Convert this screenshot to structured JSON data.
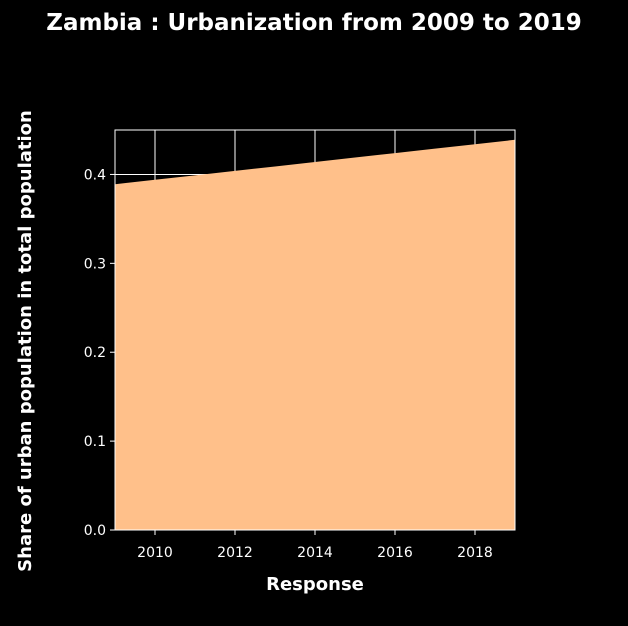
{
  "chart_data": {
    "type": "area",
    "title": "Zambia : Urbanization from 2009 to 2019",
    "xlabel": "Response",
    "ylabel": "Share of urban population in total population",
    "x": [
      2009,
      2010,
      2011,
      2012,
      2013,
      2014,
      2015,
      2016,
      2017,
      2018,
      2019
    ],
    "series": [
      {
        "values": [
          0.389,
          0.394,
          0.399,
          0.404,
          0.409,
          0.414,
          0.419,
          0.424,
          0.429,
          0.434,
          0.439
        ]
      }
    ],
    "xlim": [
      2009,
      2019
    ],
    "ylim": [
      0,
      0.45
    ],
    "xticks": [
      "2010",
      "2012",
      "2014",
      "2016",
      "2018"
    ],
    "yticks": [
      "0.0",
      "0.1",
      "0.2",
      "0.3",
      "0.4"
    ],
    "grid": true,
    "colors": {
      "background": "#000000",
      "area_fill": "#ffc08a",
      "grid": "#ffffff",
      "text": "#ffffff"
    }
  }
}
